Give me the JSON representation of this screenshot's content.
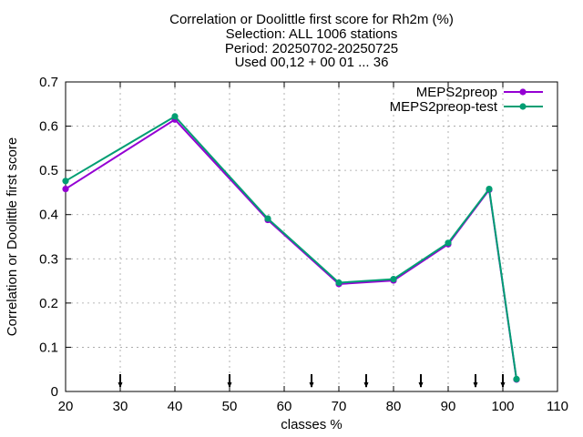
{
  "title_lines": [
    "Correlation or Doolittle first score  for Rh2m (%)",
    "Selection: ALL    1006 stations",
    "Period: 20250702-20250725",
    "Used 00,12 + 00 01 ... 36"
  ],
  "chart_data": {
    "type": "line",
    "xlabel": "classes %",
    "ylabel": "Correlation or Doolittle first score",
    "xlim": [
      20,
      110
    ],
    "ylim": [
      0,
      0.7
    ],
    "x_ticks": [
      20,
      30,
      40,
      50,
      60,
      70,
      80,
      90,
      100,
      110
    ],
    "y_ticks": [
      0,
      0.1,
      0.2,
      0.3,
      0.4,
      0.5,
      0.6,
      0.7
    ],
    "x_tick_labels": [
      "20",
      "30",
      "40",
      "50",
      "60",
      "70",
      "80",
      "90",
      "100",
      "110"
    ],
    "y_tick_labels": [
      "0",
      "0.1",
      "0.2",
      "0.3",
      "0.4",
      "0.5",
      "0.6",
      "0.7"
    ],
    "grid": true,
    "legend_position": "top-right",
    "class_markers_x": [
      30,
      50,
      65,
      75,
      85,
      95,
      100
    ],
    "series": [
      {
        "name": "MEPS2preop",
        "color": "#9400d3",
        "x": [
          20,
          40,
          57,
          70,
          80,
          90,
          97.5,
          102.5
        ],
        "y": [
          0.458,
          0.615,
          0.388,
          0.243,
          0.251,
          0.333,
          0.456,
          0.027
        ]
      },
      {
        "name": "MEPS2preop-test",
        "color": "#009e73",
        "x": [
          20,
          40,
          57,
          70,
          80,
          90,
          97.5,
          102.5
        ],
        "y": [
          0.476,
          0.622,
          0.391,
          0.246,
          0.254,
          0.336,
          0.458,
          0.028
        ]
      }
    ]
  }
}
